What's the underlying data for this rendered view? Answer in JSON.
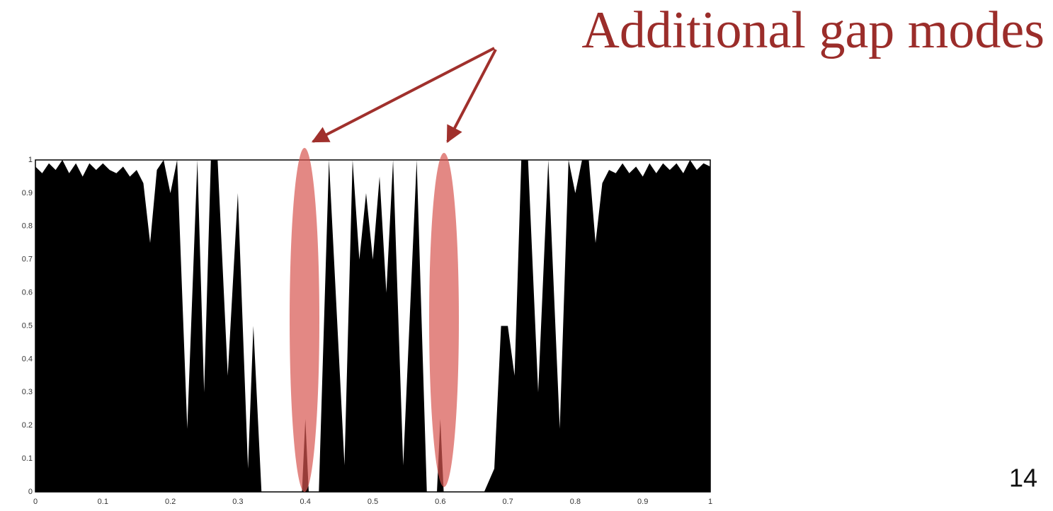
{
  "chart_data": {
    "type": "area",
    "annotation": "Additional gap modes",
    "page_number": "14",
    "color": "#000000",
    "x": [
      0,
      0.01,
      0.02,
      0.03,
      0.04,
      0.05,
      0.06,
      0.07,
      0.08,
      0.09,
      0.1,
      0.11,
      0.12,
      0.13,
      0.14,
      0.15,
      0.16,
      0.17,
      0.18,
      0.19,
      0.2,
      0.21,
      0.225,
      0.24,
      0.25,
      0.26,
      0.27,
      0.285,
      0.3,
      0.315,
      0.323,
      0.335,
      0.395,
      0.4,
      0.405,
      0.42,
      0.435,
      0.458,
      0.47,
      0.48,
      0.49,
      0.5,
      0.51,
      0.52,
      0.53,
      0.545,
      0.565,
      0.58,
      0.595,
      0.6,
      0.605,
      0.665,
      0.68,
      0.69,
      0.7,
      0.71,
      0.72,
      0.73,
      0.745,
      0.76,
      0.777,
      0.79,
      0.8,
      0.81,
      0.82,
      0.83,
      0.84,
      0.85,
      0.86,
      0.87,
      0.88,
      0.89,
      0.9,
      0.91,
      0.92,
      0.93,
      0.94,
      0.95,
      0.96,
      0.97,
      0.98,
      0.99,
      1
    ],
    "values": [
      0.98,
      0.96,
      0.99,
      0.97,
      1,
      0.96,
      0.99,
      0.95,
      0.99,
      0.97,
      0.99,
      0.97,
      0.96,
      0.98,
      0.95,
      0.97,
      0.93,
      0.75,
      0.97,
      1,
      0.9,
      1,
      0.19,
      1,
      0.3,
      1,
      1,
      0.35,
      0.9,
      0.07,
      0.5,
      0,
      0,
      0.22,
      0,
      0,
      1,
      0.08,
      1,
      0.7,
      0.9,
      0.7,
      0.95,
      0.6,
      1,
      0.08,
      1,
      0,
      0,
      0.22,
      0,
      0,
      0.07,
      0.5,
      0.5,
      0.35,
      1,
      1,
      0.3,
      1,
      0.19,
      1,
      0.9,
      1,
      1,
      0.75,
      0.93,
      0.97,
      0.96,
      0.99,
      0.96,
      0.98,
      0.95,
      0.99,
      0.96,
      0.99,
      0.97,
      0.99,
      0.96,
      1,
      0.97,
      0.99,
      0.98
    ],
    "xlim": [
      0,
      1
    ],
    "ylim": [
      0,
      1
    ],
    "xticks": [
      0,
      0.1,
      0.2,
      0.3,
      0.4,
      0.5,
      0.6,
      0.7,
      0.8,
      0.9,
      1
    ],
    "yticks": [
      0,
      0.1,
      0.2,
      0.3,
      0.4,
      0.5,
      0.6,
      0.7,
      0.8,
      0.9,
      1
    ],
    "grid": false
  }
}
